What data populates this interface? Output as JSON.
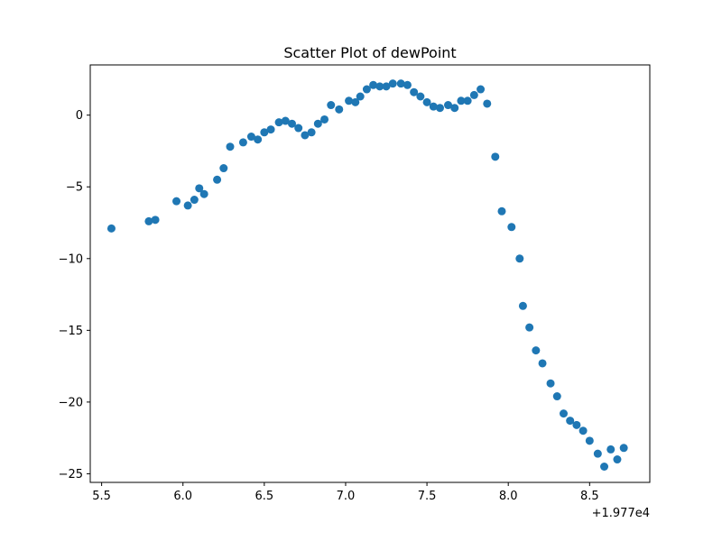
{
  "chart_data": {
    "type": "scatter",
    "title": "Scatter Plot of dewPoint",
    "xlabel": "",
    "ylabel": "",
    "x_offset_label": "+1.977e4",
    "xlim": [
      5.43,
      8.87
    ],
    "ylim": [
      -25.6,
      3.5
    ],
    "xticks": [
      5.5,
      6.0,
      6.5,
      7.0,
      7.5,
      8.0,
      8.5
    ],
    "xtick_labels": [
      "5.5",
      "6.0",
      "6.5",
      "7.0",
      "7.5",
      "8.0",
      "8.5"
    ],
    "yticks": [
      0,
      -5,
      -10,
      -15,
      -20,
      -25
    ],
    "ytick_labels": [
      "0",
      "−5",
      "−10",
      "−15",
      "−20",
      "−25"
    ],
    "grid": false,
    "marker_color": "#1f77b4",
    "series": [
      {
        "x": [
          5.56,
          5.79,
          5.83,
          5.96,
          6.03,
          6.07,
          6.1,
          6.13,
          6.21,
          6.25,
          6.29,
          6.37,
          6.42,
          6.46,
          6.5,
          6.54,
          6.59,
          6.63,
          6.67,
          6.71,
          6.75,
          6.79,
          6.83,
          6.87,
          6.91,
          6.96,
          7.02,
          7.06,
          7.09,
          7.13,
          7.17,
          7.21,
          7.25,
          7.29,
          7.34,
          7.38,
          7.42,
          7.46,
          7.5,
          7.54,
          7.58,
          7.63,
          7.67,
          7.71,
          7.75,
          7.79,
          7.83,
          7.87,
          7.92,
          7.96,
          8.02,
          8.07,
          8.09,
          8.13,
          8.17,
          8.21,
          8.26,
          8.3,
          8.34,
          8.38,
          8.42,
          8.46,
          8.5,
          8.55,
          8.59,
          8.63,
          8.67,
          8.71
        ],
        "y": [
          -7.9,
          -7.4,
          -7.3,
          -6.0,
          -6.3,
          -5.9,
          -5.1,
          -5.5,
          -4.5,
          -3.7,
          -2.2,
          -1.9,
          -1.5,
          -1.7,
          -1.2,
          -1.0,
          -0.5,
          -0.4,
          -0.6,
          -0.9,
          -1.4,
          -1.2,
          -0.6,
          -0.3,
          0.7,
          0.4,
          1.0,
          0.9,
          1.3,
          1.8,
          2.1,
          2.0,
          2.0,
          2.2,
          2.2,
          2.1,
          1.6,
          1.3,
          0.9,
          0.6,
          0.5,
          0.7,
          0.5,
          1.0,
          1.0,
          1.4,
          1.8,
          0.8,
          -2.9,
          -6.7,
          -7.8,
          -10.0,
          -13.3,
          -14.8,
          -16.4,
          -17.3,
          -18.7,
          -19.6,
          -20.8,
          -21.3,
          -21.6,
          -22.0,
          -22.7,
          -23.6,
          -24.5,
          -23.3,
          -24.0,
          -23.2
        ]
      }
    ]
  }
}
